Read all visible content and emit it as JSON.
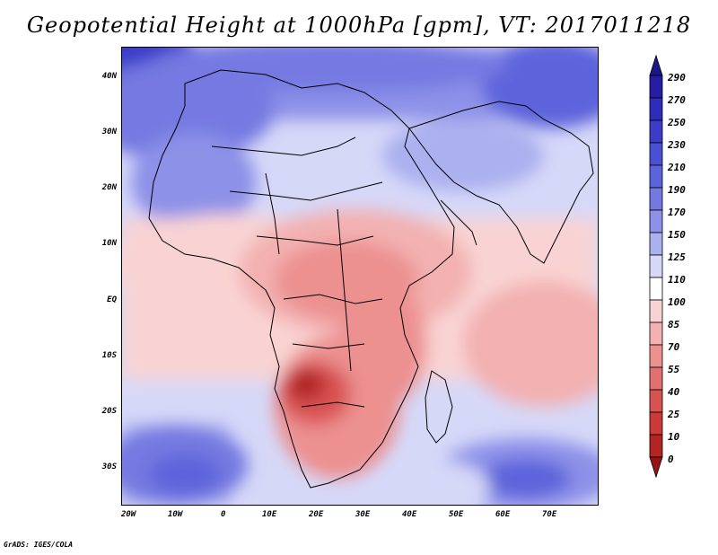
{
  "title": "Geopotential Height at 1000hPa [gpm], VT: 2017011218",
  "credit": "GrADS: IGES/COLA",
  "map": {
    "variable": "Geopotential Height at 1000hPa",
    "units": "gpm",
    "valid_time": "2017011218",
    "lat_labels": [
      "40N",
      "30N",
      "20N",
      "10N",
      "EQ",
      "10S",
      "20S",
      "30S"
    ],
    "lon_labels": [
      "20W",
      "10W",
      "0",
      "10E",
      "20E",
      "30E",
      "40E",
      "50E",
      "60E",
      "70E"
    ]
  },
  "colorbar": {
    "levels": [
      "290",
      "270",
      "250",
      "230",
      "210",
      "190",
      "170",
      "150",
      "125",
      "110",
      "100",
      "85",
      "70",
      "55",
      "40",
      "25",
      "10",
      "0"
    ],
    "colors": [
      "#1c1787",
      "#261ca5",
      "#2f2bbb",
      "#3b3dc9",
      "#4a4fd3",
      "#5d64db",
      "#7479e1",
      "#8d91e8",
      "#abb0ef",
      "#d6d8f8",
      "#ffffff",
      "#f9d3d3",
      "#f3b1b1",
      "#ec9090",
      "#e37070",
      "#d95252",
      "#cc3939",
      "#b32525",
      "#961414"
    ]
  },
  "palette": {
    "low": "#961414",
    "high": "#1c1787",
    "coast": "#000000"
  }
}
